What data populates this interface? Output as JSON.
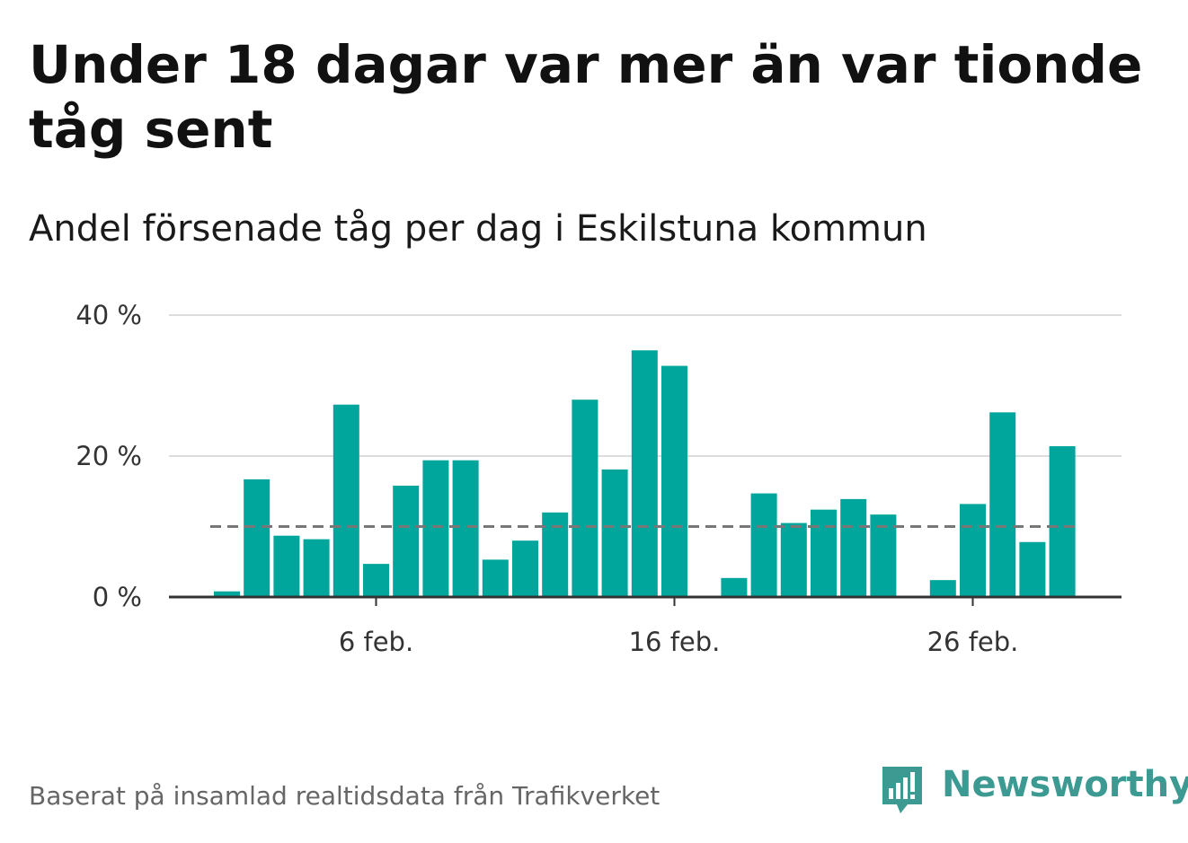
{
  "title": "Under 18 dagar var mer än var tionde tåg sent",
  "subtitle": "Andel försenade tåg per dag i Eskilstuna kommun",
  "footer": "Baserat på insamlad realtidsdata från Trafikverket",
  "logo": {
    "text": "Newsworthy",
    "icon": "newsworthy-logo-icon",
    "color": "#3c9a92"
  },
  "colors": {
    "bar": "#00a59b",
    "reference_line": "#777777",
    "grid": "#dddddd",
    "axis": "#333333"
  },
  "chart_data": {
    "type": "bar",
    "x": [
      "1 feb.",
      "2 feb.",
      "3 feb.",
      "4 feb.",
      "5 feb.",
      "6 feb.",
      "7 feb.",
      "8 feb.",
      "9 feb.",
      "10 feb.",
      "11 feb.",
      "12 feb.",
      "13 feb.",
      "14 feb.",
      "15 feb.",
      "16 feb.",
      "17 feb.",
      "18 feb.",
      "19 feb.",
      "20 feb.",
      "21 feb.",
      "22 feb.",
      "23 feb.",
      "24 feb.",
      "25 feb.",
      "26 feb.",
      "27 feb.",
      "28 feb.",
      "29 feb."
    ],
    "values": [
      0.8,
      16.7,
      8.7,
      8.2,
      27.3,
      4.7,
      15.8,
      19.4,
      19.4,
      5.3,
      8.0,
      12.0,
      28.0,
      18.1,
      35.0,
      32.8,
      null,
      2.7,
      14.7,
      10.5,
      12.4,
      13.9,
      11.7,
      null,
      2.4,
      13.2,
      26.2,
      7.8,
      21.4
    ],
    "x_ticks": [
      "6 feb.",
      "16 feb.",
      "26 feb."
    ],
    "y_ticks": [
      "0 %",
      "20 %",
      "40 %"
    ],
    "ylim": [
      0,
      40
    ],
    "reference_line": 10,
    "grid": true,
    "legend": "none"
  }
}
